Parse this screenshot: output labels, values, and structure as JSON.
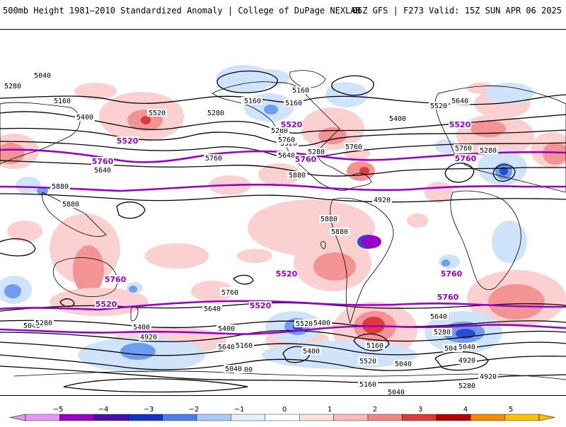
{
  "header": {
    "title_left": "500mb Height 1981–2010 Standardized Anomaly | College of DuPage NEXLAB",
    "title_right": "06Z GFS | F273 Valid: 15Z SUN APR 06 2025"
  },
  "colors": {
    "positive_anomaly": [
      "#fbd0d0",
      "#f39393",
      "#dd3a3a",
      "#b50000"
    ],
    "negative_anomaly": [
      "#cfe3fb",
      "#6f9bf0",
      "#2a4ccf",
      "#0b1f9a"
    ],
    "highlight_contour": "#9b00c8"
  },
  "contour_labels": {
    "black": [
      "5040",
      "5280",
      "5160",
      "5400",
      "5520",
      "5280",
      "5400",
      "5160",
      "5280",
      "5520",
      "5640",
      "5760",
      "5160",
      "5280",
      "5400",
      "5520",
      "5640",
      "5280",
      "5760",
      "5760",
      "5880",
      "5880",
      "5880",
      "5880",
      "5880",
      "5640",
      "5760",
      "5160",
      "4920",
      "5040",
      "5280",
      "5400",
      "5520",
      "5640",
      "5760",
      "4920",
      "5040",
      "5160",
      "5400",
      "5520",
      "5640",
      "4800",
      "5040",
      "5400",
      "5160",
      "5040",
      "4920",
      "5280",
      "5040",
      "4920",
      "5760",
      "5400",
      "5520",
      "5640",
      "5160",
      "5040",
      "5280"
    ],
    "highlighted": [
      "5520",
      "5760",
      "5520",
      "5760",
      "5520",
      "5760",
      "5760",
      "5520",
      "5760",
      "5520",
      "5520",
      "5760"
    ]
  },
  "colorbar": {
    "ticks": [
      "−5",
      "−4",
      "−3",
      "−2",
      "−1",
      "0",
      "1",
      "2",
      "3",
      "4",
      "5"
    ],
    "bins": [
      "#e29af0",
      "#9b00c8",
      "#4b0fa8",
      "#1531c8",
      "#4f7de8",
      "#a9c8f5",
      "#e6f0fc",
      "#ffffff",
      "#fde2e2",
      "#fbbaba",
      "#f38484",
      "#dd3a3a",
      "#b50000",
      "#f58a00",
      "#fac200"
    ]
  }
}
